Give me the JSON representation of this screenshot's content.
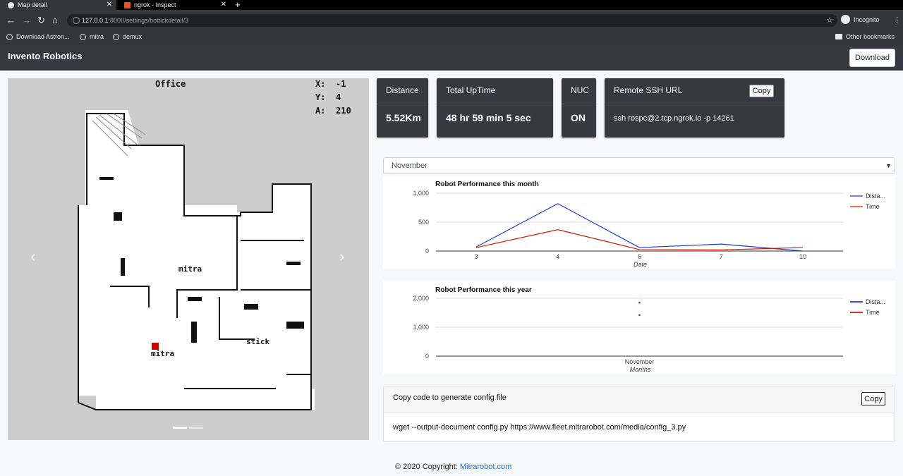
{
  "browser": {
    "tabs": [
      {
        "title": "Map detail",
        "active": true
      },
      {
        "title": "ngrok - Inspect",
        "active": false
      }
    ],
    "url_host": "127.0.0.1",
    "url_path": ":8000/settings/bottickdetail/3",
    "profile": "Incognito",
    "bookmarks": [
      "Download Astron...",
      "mitra",
      "demux"
    ],
    "other_bookmarks": "Other bookmarks"
  },
  "navbar": {
    "brand": "Invento Robotics",
    "download_label": "Download"
  },
  "map": {
    "title": "Office",
    "x_label": "X:",
    "x_value": "-1",
    "y_label": "Y:",
    "y_value": "4",
    "a_label": "A:",
    "a_value": "210",
    "labels": [
      "mitra",
      "mitra",
      "stick"
    ],
    "prev": "‹",
    "next": "›",
    "slides": 2,
    "active_slide": 0
  },
  "stats": {
    "distance": {
      "label": "Distance",
      "value": "5.52Km"
    },
    "uptime": {
      "label": "Total UpTime",
      "value": "48 hr 59 min 5 sec"
    },
    "nuc": {
      "label": "NUC",
      "value": "ON"
    },
    "ssh": {
      "label": "Remote SSH URL",
      "value": "ssh rospc@2.tcp.ngrok.io -p 14261",
      "copy_label": "Copy"
    }
  },
  "month_select": {
    "selected": "November"
  },
  "chart_data": [
    {
      "type": "line",
      "title": "Robot Performance this month",
      "xlabel": "Date",
      "ylabel": "",
      "x": [
        3,
        4,
        6,
        7,
        10
      ],
      "xticks": [
        "3",
        "4",
        "6",
        "7",
        "10"
      ],
      "yticks": [
        "1,000",
        "500",
        "0"
      ],
      "ylim": [
        0,
        1000
      ],
      "series": [
        {
          "name": "Dista...",
          "color": "#1a3ccf",
          "values": [
            70,
            820,
            60,
            120,
            0
          ]
        },
        {
          "name": "Time",
          "color": "#cc1a00",
          "values": [
            60,
            370,
            25,
            20,
            60
          ]
        }
      ],
      "legend": "right"
    },
    {
      "type": "scatter",
      "title": "Robot Performance this year",
      "xlabel": "Months",
      "ylabel": "",
      "categories": [
        "November"
      ],
      "yticks": [
        "2,000",
        "1,000",
        "0"
      ],
      "ylim": [
        0,
        2000
      ],
      "series": [
        {
          "name": "Dista...",
          "color": "#1a3ccf",
          "values": [
            1420
          ]
        },
        {
          "name": "Time",
          "color": "#cc1a00",
          "values": [
            1850
          ]
        }
      ],
      "legend": "right"
    }
  ],
  "config": {
    "title": "Copy code to generate config file",
    "copy_label": "Copy",
    "command": "wget --output-document config.py https://www.fleet.mitrarobot.com/media/config_3.py"
  },
  "footer": {
    "text": "© 2020 Copyright: ",
    "link": "Mitrarobot.com"
  }
}
